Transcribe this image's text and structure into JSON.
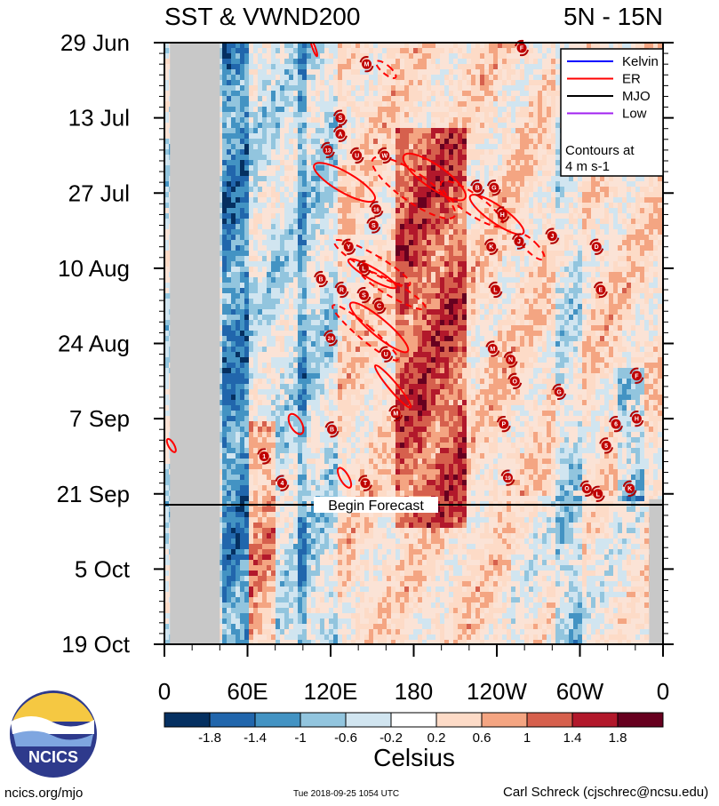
{
  "chart_data": {
    "type": "heatmap",
    "title_left": "SST & VWND200",
    "title_right": "5N - 15N",
    "y_tick_labels": [
      "29 Jun",
      "13 Jul",
      "27 Jul",
      "10 Aug",
      "24 Aug",
      "7 Sep",
      "21 Sep",
      "5 Oct",
      "19 Oct"
    ],
    "x_tick_labels": [
      "0",
      "60E",
      "120E",
      "180",
      "120W",
      "60W",
      "0"
    ],
    "x_range_deg": [
      0,
      360
    ],
    "time_range": [
      "2018-06-29",
      "2018-10-19"
    ],
    "forecast_label": "Begin Forecast",
    "forecast_date": "2018-09-24",
    "colorbar": {
      "unit": "Celsius",
      "levels": [
        "-1.8",
        "-1.4",
        "-1",
        "-0.6",
        "-0.2",
        "0.2",
        "0.6",
        "1",
        "1.4",
        "1.8"
      ],
      "colors": [
        "#053061",
        "#2166ac",
        "#4393c3",
        "#92c5de",
        "#d1e5f0",
        "#ffffff",
        "#fddbc7",
        "#f4a582",
        "#d6604d",
        "#b2182b",
        "#67001f"
      ]
    },
    "legend": {
      "items": [
        {
          "label": "Kelvin",
          "color": "#0000ff"
        },
        {
          "label": "ER",
          "color": "#ff0000"
        },
        {
          "label": "MJO",
          "color": "#000000"
        },
        {
          "label": "Low",
          "color": "#a020f0"
        }
      ],
      "note_line1": "Contours at",
      "note_line2": "4 m s-1"
    },
    "storm_markers": [
      {
        "id": "F",
        "lon": 258,
        "day": 1
      },
      {
        "id": "M",
        "lon": 146,
        "day": 4
      },
      {
        "id": "S",
        "lon": 127,
        "day": 14
      },
      {
        "id": "A",
        "lon": 127,
        "day": 17
      },
      {
        "id": "13",
        "lon": 118,
        "day": 20
      },
      {
        "id": "U",
        "lon": 139,
        "day": 21
      },
      {
        "id": "W",
        "lon": 159,
        "day": 21
      },
      {
        "id": "B",
        "lon": 226,
        "day": 27
      },
      {
        "id": "G",
        "lon": 238,
        "day": 27
      },
      {
        "id": "16",
        "lon": 153,
        "day": 31
      },
      {
        "id": "S",
        "lon": 151,
        "day": 34
      },
      {
        "id": "H",
        "lon": 244,
        "day": 32
      },
      {
        "id": "J",
        "lon": 280,
        "day": 36
      },
      {
        "id": "K",
        "lon": 236,
        "day": 38
      },
      {
        "id": "J",
        "lon": 256,
        "day": 37
      },
      {
        "id": "Y",
        "lon": 133,
        "day": 38
      },
      {
        "id": "D",
        "lon": 312,
        "day": 38
      },
      {
        "id": "L",
        "lon": 144,
        "day": 42
      },
      {
        "id": "B",
        "lon": 113,
        "day": 44
      },
      {
        "id": "R",
        "lon": 128,
        "day": 46
      },
      {
        "id": "S",
        "lon": 144,
        "day": 47
      },
      {
        "id": "L",
        "lon": 239,
        "day": 46
      },
      {
        "id": "E",
        "lon": 315,
        "day": 46
      },
      {
        "id": "C",
        "lon": 155,
        "day": 49
      },
      {
        "id": "24",
        "lon": 120,
        "day": 55
      },
      {
        "id": "U",
        "lon": 160,
        "day": 58
      },
      {
        "id": "M",
        "lon": 237,
        "day": 57
      },
      {
        "id": "N",
        "lon": 250,
        "day": 59
      },
      {
        "id": "O",
        "lon": 253,
        "day": 63
      },
      {
        "id": "F",
        "lon": 341,
        "day": 62
      },
      {
        "id": "G",
        "lon": 285,
        "day": 65
      },
      {
        "id": "M",
        "lon": 167,
        "day": 69
      },
      {
        "id": "P",
        "lon": 245,
        "day": 71
      },
      {
        "id": "6",
        "lon": 326,
        "day": 71
      },
      {
        "id": "H",
        "lon": 341,
        "day": 70
      },
      {
        "id": "B",
        "lon": 121,
        "day": 72
      },
      {
        "id": "5",
        "lon": 319,
        "day": 75
      },
      {
        "id": "1",
        "lon": 72,
        "day": 77
      },
      {
        "id": "4",
        "lon": 85,
        "day": 82
      },
      {
        "id": "T",
        "lon": 145,
        "day": 82
      },
      {
        "id": "19",
        "lon": 248,
        "day": 81
      },
      {
        "id": "O",
        "lon": 305,
        "day": 83
      },
      {
        "id": "L",
        "lon": 313,
        "day": 84
      },
      {
        "id": "K",
        "lon": 336,
        "day": 83
      }
    ]
  },
  "logo": {
    "text": "NCICS"
  },
  "footer": {
    "website": "ncics.org/mjo",
    "timestamp": "Tue 2018-09-25 1054 UTC",
    "author": "Carl Schreck (cjschrec@ncsu.edu)"
  }
}
